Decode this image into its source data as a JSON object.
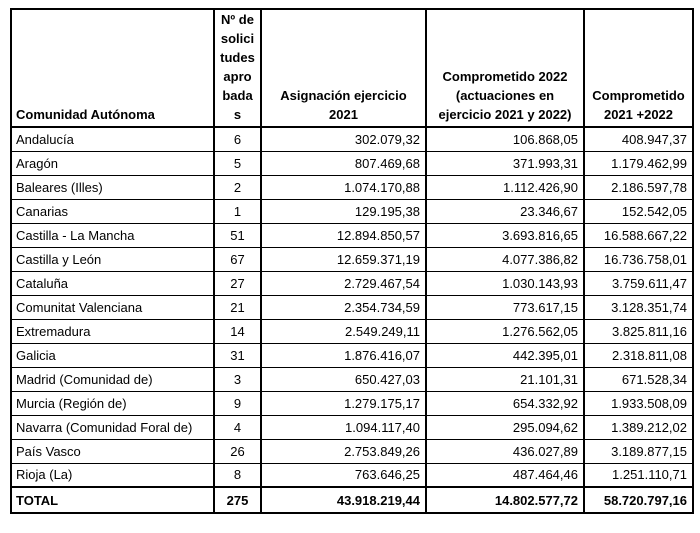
{
  "chart_data": {
    "type": "table",
    "title": "",
    "columns": [
      "Comunidad Autónoma",
      "Nº de solicitudes aprobadas",
      "Asignación ejercicio 2021",
      "Comprometido 2022 (actuaciones en ejercicio 2021 y 2022)",
      "Comprometido 2021 +2022"
    ],
    "rows": [
      [
        "Andalucía",
        "6",
        "302.079,32",
        "106.868,05",
        "408.947,37"
      ],
      [
        "Aragón",
        "5",
        "807.469,68",
        "371.993,31",
        "1.179.462,99"
      ],
      [
        "Baleares (Illes)",
        "2",
        "1.074.170,88",
        "1.112.426,90",
        "2.186.597,78"
      ],
      [
        "Canarias",
        "1",
        "129.195,38",
        "23.346,67",
        "152.542,05"
      ],
      [
        "Castilla - La Mancha",
        "51",
        "12.894.850,57",
        "3.693.816,65",
        "16.588.667,22"
      ],
      [
        "Castilla y León",
        "67",
        "12.659.371,19",
        "4.077.386,82",
        "16.736.758,01"
      ],
      [
        "Cataluña",
        "27",
        "2.729.467,54",
        "1.030.143,93",
        "3.759.611,47"
      ],
      [
        "Comunitat Valenciana",
        "21",
        "2.354.734,59",
        "773.617,15",
        "3.128.351,74"
      ],
      [
        "Extremadura",
        "14",
        "2.549.249,11",
        "1.276.562,05",
        "3.825.811,16"
      ],
      [
        "Galicia",
        "31",
        "1.876.416,07",
        "442.395,01",
        "2.318.811,08"
      ],
      [
        "Madrid (Comunidad de)",
        "3",
        "650.427,03",
        "21.101,31",
        "671.528,34"
      ],
      [
        "Murcia (Región de)",
        "9",
        "1.279.175,17",
        "654.332,92",
        "1.933.508,09"
      ],
      [
        "Navarra (Comunidad Foral de)",
        "4",
        "1.094.117,40",
        "295.094,62",
        "1.389.212,02"
      ],
      [
        "País Vasco",
        "26",
        "2.753.849,26",
        "436.027,89",
        "3.189.877,15"
      ],
      [
        "Rioja (La)",
        "8",
        "763.646,25",
        "487.464,46",
        "1.251.110,71"
      ]
    ],
    "total": [
      "TOTAL",
      "275",
      "43.918.219,44",
      "14.802.577,72",
      "58.720.797,16"
    ]
  },
  "header_display": [
    "Comunidad Autónoma",
    "Nº de\nsolici\ntudes\napro\nbada\ns",
    "Asignación ejercicio\n2021",
    "Comprometido 2022\n(actuaciones en\nejercicio 2021 y 2022)",
    "Comprometido\n2021 +2022"
  ]
}
